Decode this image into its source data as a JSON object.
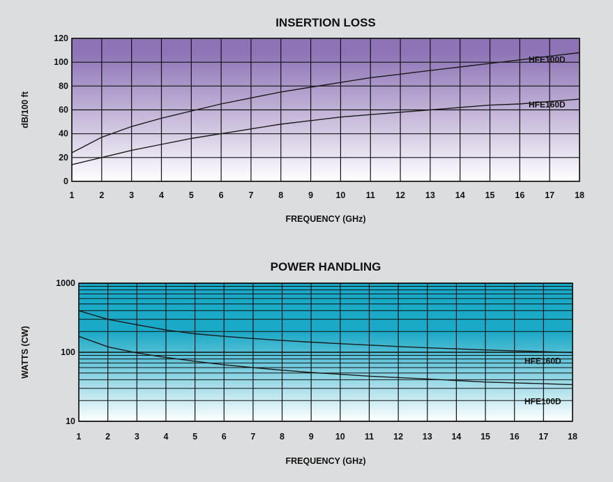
{
  "chart_data": [
    {
      "type": "line",
      "title": "INSERTION LOSS",
      "xlabel": "FREQUENCY (GHz)",
      "ylabel": "dB/100 ft",
      "xlim": [
        1,
        18
      ],
      "ylim": [
        0,
        120
      ],
      "yscale": "linear",
      "x_ticks": [
        "1",
        "2",
        "3",
        "4",
        "5",
        "6",
        "7",
        "8",
        "9",
        "10",
        "11",
        "12",
        "13",
        "14",
        "15",
        "16",
        "17",
        "18"
      ],
      "y_ticks": [
        "0",
        "20",
        "40",
        "60",
        "80",
        "100",
        "120"
      ],
      "grid": true,
      "background_colors": [
        "#8e74b6",
        "#ffffff"
      ],
      "series": [
        {
          "name": "HFE100D",
          "x": [
            1,
            2,
            3,
            4,
            5,
            6,
            7,
            8,
            9,
            10,
            11,
            12,
            13,
            14,
            15,
            16,
            17,
            18
          ],
          "y": [
            24,
            37,
            46,
            53,
            59,
            65,
            70,
            75,
            79,
            83,
            87,
            90,
            93,
            96,
            99,
            102,
            105,
            108
          ]
        },
        {
          "name": "HFE160D",
          "x": [
            1,
            2,
            3,
            4,
            5,
            6,
            7,
            8,
            9,
            10,
            11,
            12,
            13,
            14,
            15,
            16,
            17,
            18
          ],
          "y": [
            14,
            20,
            26,
            31,
            36,
            40,
            44,
            48,
            51,
            54,
            56,
            58,
            60,
            62,
            64,
            65,
            67,
            69
          ]
        }
      ]
    },
    {
      "type": "line",
      "title": "POWER HANDLING",
      "xlabel": "FREQUENCY (GHz)",
      "ylabel": "WATTS (CW)",
      "xlim": [
        1,
        18
      ],
      "ylim": [
        10,
        1000
      ],
      "yscale": "log",
      "x_ticks": [
        "1",
        "2",
        "3",
        "4",
        "5",
        "6",
        "7",
        "8",
        "9",
        "10",
        "11",
        "12",
        "13",
        "14",
        "15",
        "16",
        "17",
        "18"
      ],
      "y_ticks": [
        "10",
        "100",
        "1000"
      ],
      "grid": true,
      "background_colors": [
        "#1aa9c6",
        "#ffffff"
      ],
      "series": [
        {
          "name": "HFE160D",
          "x": [
            1,
            2,
            3,
            4,
            5,
            6,
            7,
            8,
            9,
            10,
            11,
            12,
            13,
            14,
            15,
            16,
            17,
            18
          ],
          "y": [
            400,
            300,
            250,
            210,
            185,
            170,
            158,
            148,
            140,
            133,
            127,
            121,
            116,
            112,
            108,
            105,
            102,
            99
          ]
        },
        {
          "name": "HFE100D",
          "x": [
            1,
            2,
            3,
            4,
            5,
            6,
            7,
            8,
            9,
            10,
            11,
            12,
            13,
            14,
            15,
            16,
            17,
            18
          ],
          "y": [
            170,
            120,
            98,
            84,
            74,
            66,
            60,
            55,
            51,
            48,
            45,
            43,
            41,
            39,
            37,
            36,
            35,
            34
          ]
        }
      ]
    }
  ]
}
